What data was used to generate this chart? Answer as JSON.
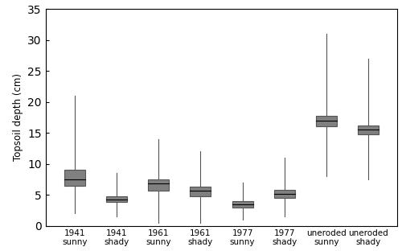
{
  "labels": [
    "1941\nsunny",
    "1941\nshady",
    "1961\nsunny",
    "1961\nshady",
    "1977\nsunny",
    "1977\nshady",
    "uneroded\nsunny",
    "uneroded\nshady"
  ],
  "boxes": [
    {
      "mean": 7.5,
      "ci_low": 6.5,
      "ci_high": 9.0,
      "whisker_low": 2.0,
      "whisker_high": 21.0
    },
    {
      "mean": 4.3,
      "ci_low": 3.8,
      "ci_high": 4.8,
      "whisker_low": 1.5,
      "whisker_high": 8.5
    },
    {
      "mean": 6.8,
      "ci_low": 5.7,
      "ci_high": 7.5,
      "whisker_low": 0.5,
      "whisker_high": 14.0
    },
    {
      "mean": 5.7,
      "ci_low": 4.8,
      "ci_high": 6.3,
      "whisker_low": 0.5,
      "whisker_high": 12.0
    },
    {
      "mean": 3.5,
      "ci_low": 3.0,
      "ci_high": 4.0,
      "whisker_low": 1.0,
      "whisker_high": 7.0
    },
    {
      "mean": 5.2,
      "ci_low": 4.5,
      "ci_high": 5.8,
      "whisker_low": 1.5,
      "whisker_high": 11.0
    },
    {
      "mean": 17.0,
      "ci_low": 16.0,
      "ci_high": 17.8,
      "whisker_low": 8.0,
      "whisker_high": 31.0
    },
    {
      "mean": 15.5,
      "ci_low": 14.8,
      "ci_high": 16.2,
      "whisker_low": 7.5,
      "whisker_high": 27.0
    }
  ],
  "box_color": "#808080",
  "box_edge_color": "#555555",
  "whisker_color": "#555555",
  "mean_line_color": "#000000",
  "ylabel": "Topsoil depth (cm)",
  "ylim": [
    0,
    35
  ],
  "yticks": [
    0,
    5,
    10,
    15,
    20,
    25,
    30,
    35
  ],
  "box_width": 0.5,
  "title": "",
  "background_color": "#ffffff",
  "figsize": [
    5.0,
    3.12
  ],
  "dpi": 100
}
